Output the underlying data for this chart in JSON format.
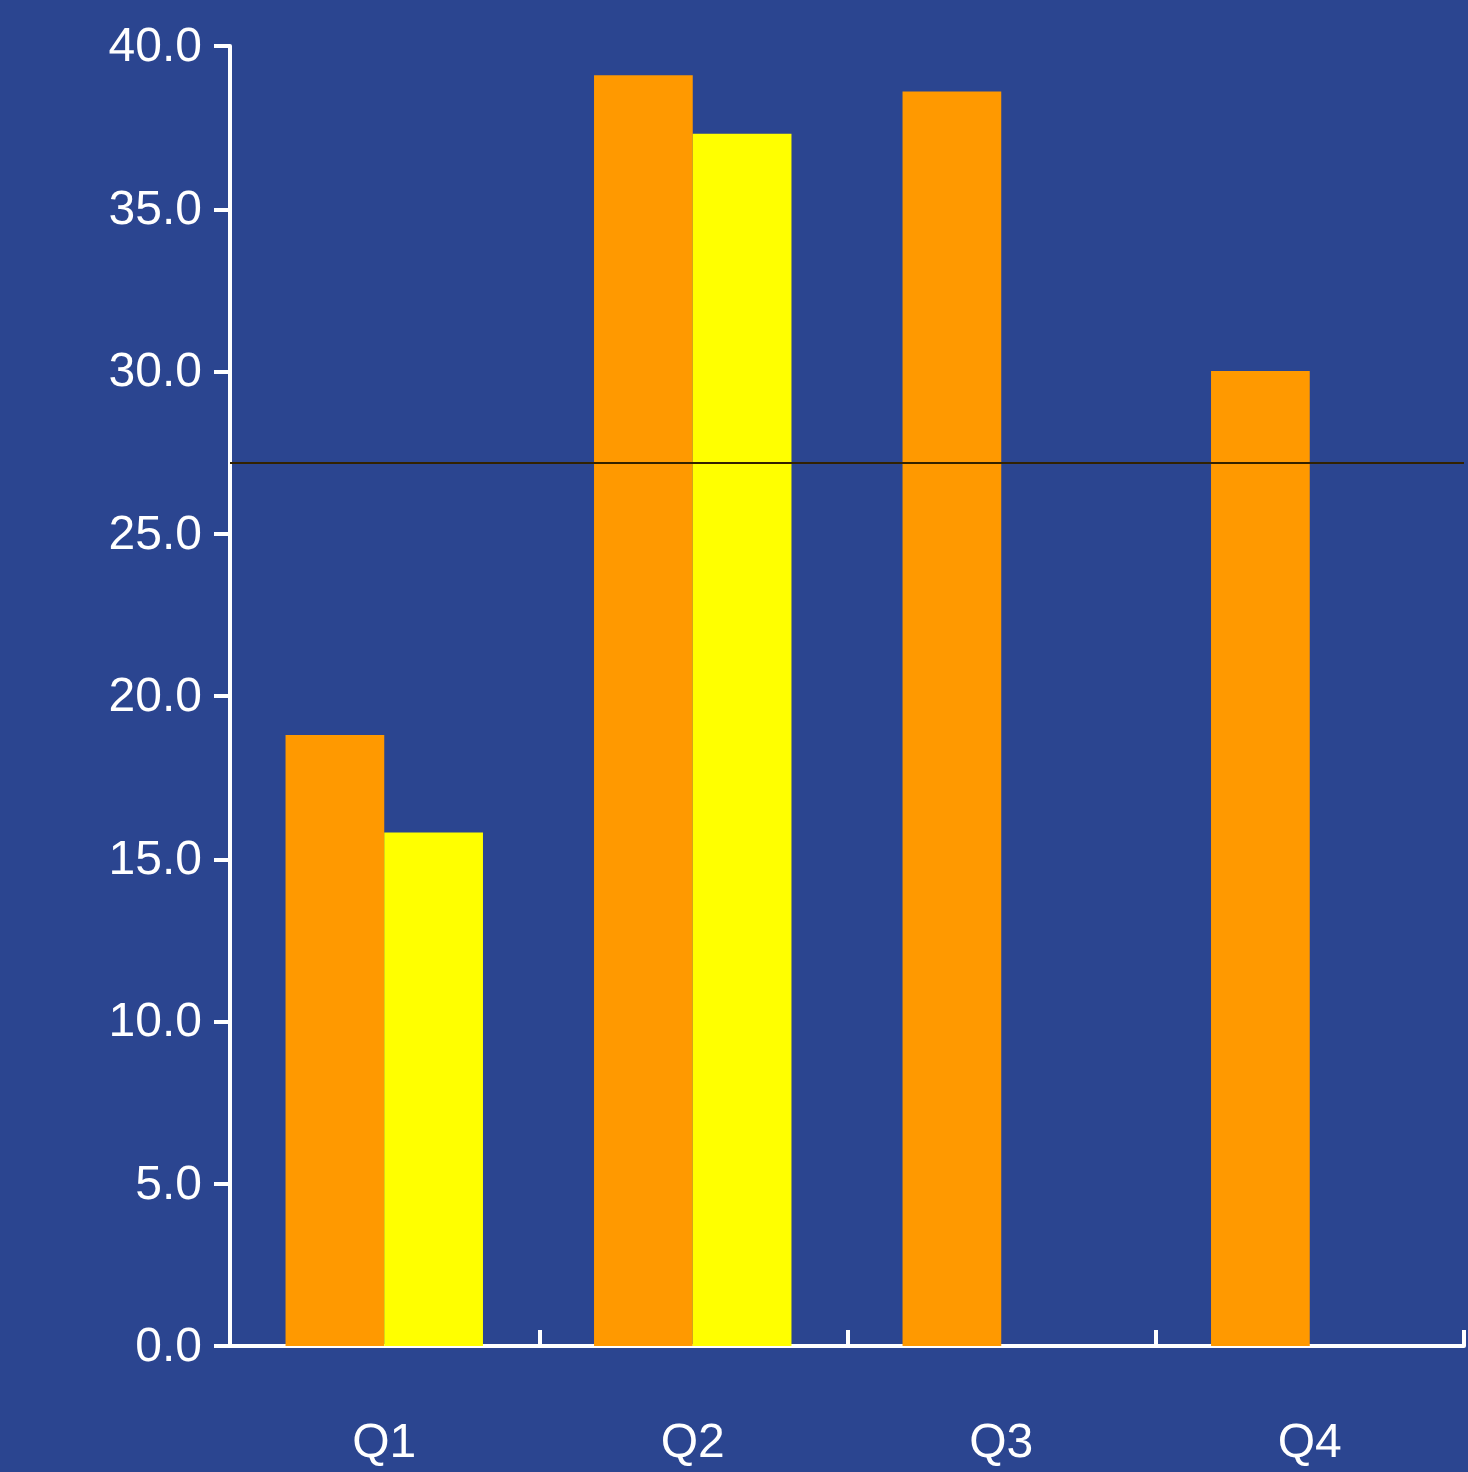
{
  "chart_data": {
    "type": "bar",
    "categories": [
      "Q1",
      "Q2",
      "Q3",
      "Q4"
    ],
    "series": [
      {
        "color": "#ff9900",
        "values": [
          18.8,
          39.1,
          38.6,
          30.0
        ]
      },
      {
        "color": "#ffff00",
        "values": [
          15.8,
          37.3,
          null,
          null
        ]
      }
    ],
    "ylim": [
      0,
      40
    ],
    "yticks": [
      {
        "value": 0,
        "label": "0.0"
      },
      {
        "value": 5,
        "label": "5.0"
      },
      {
        "value": 10,
        "label": "10.0"
      },
      {
        "value": 15,
        "label": "15.0"
      },
      {
        "value": 20,
        "label": "20.0"
      },
      {
        "value": 25,
        "label": "25.0"
      },
      {
        "value": 30,
        "label": "30.0"
      },
      {
        "value": 35,
        "label": "35.0"
      },
      {
        "value": 40,
        "label": "40.0"
      }
    ],
    "ref_lines": [
      {
        "axis": "y",
        "value": 27.2,
        "color": "#332200"
      }
    ],
    "grid": false
  }
}
